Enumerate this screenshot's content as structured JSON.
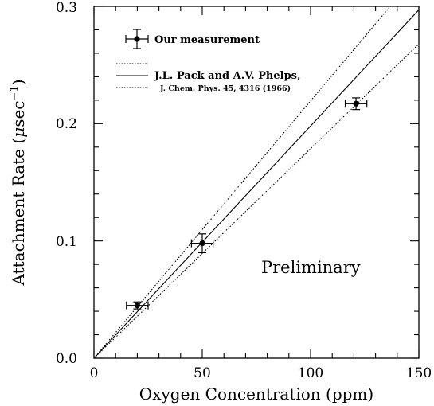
{
  "chart_data": {
    "type": "scatter",
    "xlabel": "Oxygen Concentration (ppm)",
    "ylabel_main": "Attachment Rate (",
    "ylabel_mu": "μ",
    "ylabel_unit": "sec",
    "ylabel_exp": "−1",
    "ylabel_close": ")",
    "xlim": [
      0,
      150
    ],
    "ylim": [
      0,
      0.3
    ],
    "x_ticks": [
      {
        "value": 0,
        "label": "0"
      },
      {
        "value": 50,
        "label": "50"
      },
      {
        "value": 100,
        "label": "100"
      },
      {
        "value": 150,
        "label": "150"
      }
    ],
    "y_ticks": [
      {
        "value": 0,
        "label": "0.0"
      },
      {
        "value": 0.1,
        "label": "0.1"
      },
      {
        "value": 0.2,
        "label": "0.2"
      },
      {
        "value": 0.3,
        "label": "0.3"
      }
    ],
    "x_minor_step": 10,
    "y_minor_step": 0.02,
    "series": [
      {
        "name": "Our measurement",
        "style": "points-with-errorbars",
        "points": [
          {
            "x": 20,
            "y": 0.045,
            "xerr": 5,
            "yerr": 0.003
          },
          {
            "x": 50,
            "y": 0.098,
            "xerr": 5,
            "yerr": 0.008
          },
          {
            "x": 121,
            "y": 0.217,
            "xerr": 5,
            "yerr": 0.005
          }
        ]
      },
      {
        "name": "J.L. Pack and A.V. Phelps,",
        "style": "solid-line",
        "points": [
          {
            "x": 0,
            "y": 0
          },
          {
            "x": 150,
            "y": 0.297
          }
        ]
      },
      {
        "style": "dotted-line",
        "points": [
          {
            "x": 0,
            "y": 0
          },
          {
            "x": 150,
            "y": 0.329
          }
        ]
      },
      {
        "style": "dotted-line",
        "points": [
          {
            "x": 0,
            "y": 0
          },
          {
            "x": 150,
            "y": 0.268
          }
        ]
      }
    ],
    "legend": {
      "placement": "top-left",
      "entry_measurement": "Our measurement",
      "entry_reference": "J.L. Pack and A.V. Phelps,",
      "entry_reference_citation": "J. Chem. Phys. 45, 4316 (1966)"
    },
    "annotation": "Preliminary"
  }
}
